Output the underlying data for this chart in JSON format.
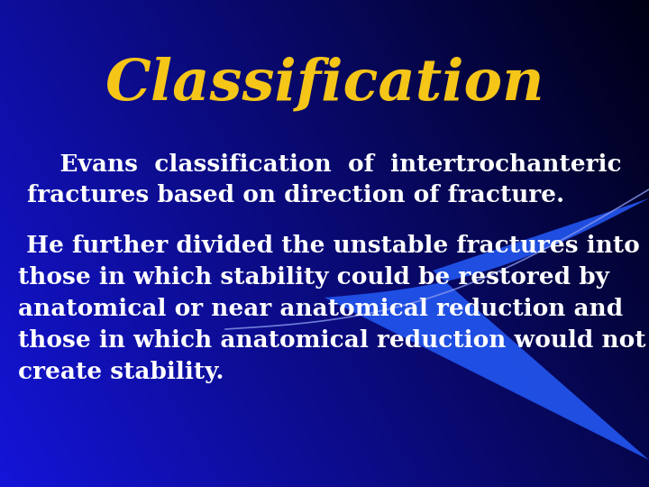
{
  "title": "Classification",
  "title_color": "#F5C518",
  "title_fontsize": 46,
  "title_fontstyle": "italic",
  "title_fontweight": "bold",
  "para1_line1": "    Evans  classification  of  intertrochanteric",
  "para1_line2": "fractures based on direction of fracture.",
  "para2": " He further divided the unstable fractures into\nthose in which stability could be restored by\nanatomical or near anatomical reduction and\nthose in which anatomical reduction would not\ncreate stability.",
  "text_color": "#ffffff",
  "text_fontsize": 19,
  "text_fontweight": "bold",
  "fig_width": 7.2,
  "fig_height": 5.4,
  "dpi": 100,
  "bg_blue": [
    0.08,
    0.08,
    0.85
  ],
  "bg_dark": [
    0.0,
    0.0,
    0.08
  ],
  "swoosh_color": "#1a44ff",
  "arc_color": "#8899ee"
}
